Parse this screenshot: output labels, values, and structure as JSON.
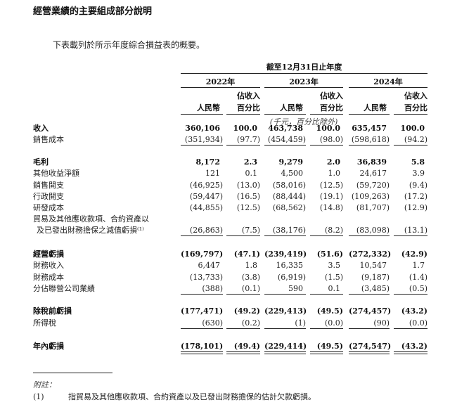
{
  "title": "經營業績的主要組成部分說明",
  "intro": "下表載列於所示年度綜合損益表的概要。",
  "table": {
    "period_header": "截至12月31日止年度",
    "years": [
      "2022年",
      "2023年",
      "2024年"
    ],
    "col_rmb": "人民幣",
    "col_pct_1": "佔收入",
    "col_pct_2": "百分比",
    "unit_note": "(千元，百分比除外)",
    "rows": [
      {
        "label": "收入",
        "bold": true,
        "values": [
          "360,106",
          "100.0",
          "463,738",
          "100.0",
          "635,457",
          "100.0"
        ]
      },
      {
        "label": "銷售成本",
        "bold": false,
        "values": [
          "(351,934)",
          "(97.7)",
          "(454,459)",
          "(98.0)",
          "(598,618)",
          "(94.2)"
        ]
      },
      {
        "label": "毛利",
        "bold": true,
        "values": [
          "8,172",
          "2.3",
          "9,279",
          "2.0",
          "36,839",
          "5.8"
        ]
      },
      {
        "label": "其他收益淨額",
        "bold": false,
        "values": [
          "121",
          "0.1",
          "4,500",
          "1.0",
          "24,617",
          "3.9"
        ]
      },
      {
        "label": "銷售開支",
        "bold": false,
        "values": [
          "(46,925)",
          "(13.0)",
          "(58,016)",
          "(12.5)",
          "(59,720)",
          "(9.4)"
        ]
      },
      {
        "label": "行政開支",
        "bold": false,
        "values": [
          "(59,447)",
          "(16.5)",
          "(88,444)",
          "(19.1)",
          "(109,263)",
          "(17.2)"
        ]
      },
      {
        "label": "研發成本",
        "bold": false,
        "values": [
          "(44,855)",
          "(12.5)",
          "(68,562)",
          "(14.8)",
          "(81,707)",
          "(12.9)"
        ]
      },
      {
        "label": "貿易及其他應收款項、合約資產以",
        "label2": "及已發出財務擔保之減值虧損⁽¹⁾",
        "bold": false,
        "values": [
          "(26,863)",
          "(7.5)",
          "(38,176)",
          "(8.2)",
          "(83,098)",
          "(13.1)"
        ]
      },
      {
        "label": "經營虧損",
        "bold": true,
        "values": [
          "(169,797)",
          "(47.1)",
          "(239,419)",
          "(51.6)",
          "(272,332)",
          "(42.9)"
        ]
      },
      {
        "label": "財務收入",
        "bold": false,
        "values": [
          "6,447",
          "1.8",
          "16,335",
          "3.5",
          "10,547",
          "1.7"
        ]
      },
      {
        "label": "財務成本",
        "bold": false,
        "values": [
          "(13,733)",
          "(3.8)",
          "(6,919)",
          "(1.5)",
          "(9,187)",
          "(1.4)"
        ]
      },
      {
        "label": "分佔聯營公司業績",
        "bold": false,
        "values": [
          "(388)",
          "(0.1)",
          "590",
          "0.1",
          "(3,485)",
          "(0.5)"
        ]
      },
      {
        "label": "除稅前虧損",
        "bold": true,
        "values": [
          "(177,471)",
          "(49.2)",
          "(229,413)",
          "(49.5)",
          "(274,457)",
          "(43.2)"
        ]
      },
      {
        "label": "所得稅",
        "bold": false,
        "values": [
          "(630)",
          "(0.2)",
          "(1)",
          "(0.0)",
          "(90)",
          "(0.0)"
        ]
      },
      {
        "label": "年內虧損",
        "bold": true,
        "values": [
          "(178,101)",
          "(49.4)",
          "(229,414)",
          "(49.5)",
          "(274,547)",
          "(43.2)"
        ]
      }
    ]
  },
  "notes": {
    "heading": "附註：",
    "items": [
      {
        "marker": "(1)",
        "text": "指貿易及其他應收款項、合約資產以及已發出財務擔保的估計欠款虧損。"
      }
    ]
  }
}
